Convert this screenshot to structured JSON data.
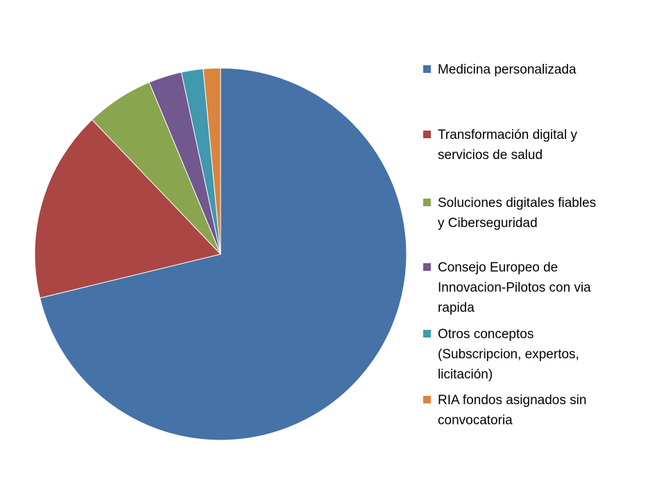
{
  "chart_data": {
    "type": "pie",
    "title": "",
    "legend_position": "right",
    "start_angle_deg": 0,
    "direction": "clockwise",
    "slices": [
      {
        "label": "Medicina personalizada",
        "value": 71.5,
        "color": "#4572A7"
      },
      {
        "label": "Transformación digital y\nservicios de salud",
        "value": 16.7,
        "color": "#AA4643"
      },
      {
        "label": "Soluciones digitales fiables\ny Ciberseguridad",
        "value": 5.9,
        "color": "#89A54E"
      },
      {
        "label": "Consejo Europeo de\nInnovacion-Pilotos con via\nrapida",
        "value": 2.9,
        "color": "#71588F"
      },
      {
        "label": "Otros conceptos\n(Subscripcion, expertos,\nlicitación)",
        "value": 1.9,
        "color": "#4198AF"
      },
      {
        "label": "RIA fondos asignados sin\nconvocatoria",
        "value": 1.5,
        "color": "#DB843D"
      }
    ]
  }
}
